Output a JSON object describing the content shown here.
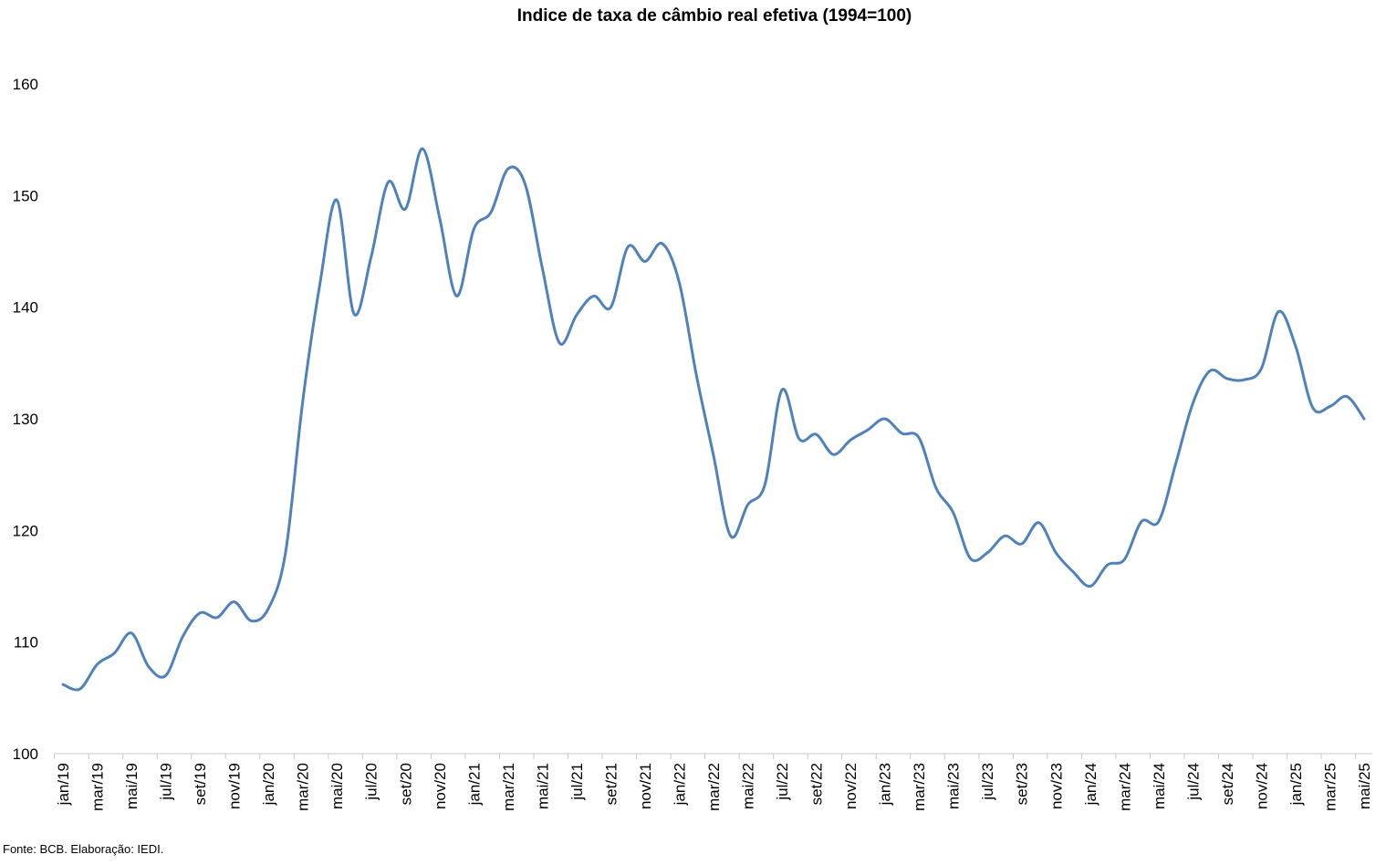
{
  "chart_data": {
    "type": "line",
    "title": "Indice de taxa de câmbio real efetiva (1994=100)",
    "source_note": "Fonte: BCB. Elaboração: IEDI.",
    "xlabel": "",
    "ylabel": "",
    "ylim": [
      100,
      160
    ],
    "yticks": [
      "100",
      "110",
      "120",
      "130",
      "140",
      "150",
      "160"
    ],
    "grid": false,
    "legend": "none",
    "line_color": "#4f81bd",
    "x_tick_labels": [
      "jan/19",
      "mar/19",
      "mai/19",
      "jul/19",
      "set/19",
      "nov/19",
      "jan/20",
      "mar/20",
      "mai/20",
      "jul/20",
      "set/20",
      "nov/20",
      "jan/21",
      "mar/21",
      "mai/21",
      "jul/21",
      "set/21",
      "nov/21",
      "jan/22",
      "mar/22",
      "mai/22",
      "jul/22",
      "set/22",
      "nov/22",
      "jan/23",
      "mar/23",
      "mai/23",
      "jul/23",
      "set/23",
      "nov/23",
      "jan/24",
      "mar/24",
      "mai/24",
      "jul/24",
      "set/24",
      "nov/24",
      "jan/25",
      "mar/25",
      "mai/25"
    ],
    "x": [
      "jan/19",
      "fev/19",
      "mar/19",
      "abr/19",
      "mai/19",
      "jun/19",
      "jul/19",
      "ago/19",
      "set/19",
      "out/19",
      "nov/19",
      "dez/19",
      "jan/20",
      "fev/20",
      "mar/20",
      "abr/20",
      "mai/20",
      "jun/20",
      "jul/20",
      "ago/20",
      "set/20",
      "out/20",
      "nov/20",
      "dez/20",
      "jan/21",
      "fev/21",
      "mar/21",
      "abr/21",
      "mai/21",
      "jun/21",
      "jul/21",
      "ago/21",
      "set/21",
      "out/21",
      "nov/21",
      "dez/21",
      "jan/22",
      "fev/22",
      "mar/22",
      "abr/22",
      "mai/22",
      "jun/22",
      "jul/22",
      "ago/22",
      "set/22",
      "out/22",
      "nov/22",
      "dez/22",
      "jan/23",
      "fev/23",
      "mar/23",
      "abr/23",
      "mai/23",
      "jun/23",
      "jul/23",
      "ago/23",
      "set/23",
      "out/23",
      "nov/23",
      "dez/23",
      "jan/24",
      "fev/24",
      "mar/24",
      "abr/24",
      "mai/24",
      "jun/24",
      "jul/24",
      "ago/24",
      "set/24",
      "out/24",
      "nov/24",
      "dez/24",
      "jan/25",
      "fev/25",
      "mar/25",
      "abr/25",
      "mai/25"
    ],
    "series": [
      {
        "values": [
          106.2,
          105.8,
          108.0,
          109.0,
          110.8,
          107.8,
          107.0,
          110.5,
          112.6,
          112.2,
          113.6,
          111.9,
          113.0,
          118.0,
          131.5,
          142.0,
          149.6,
          139.4,
          144.5,
          151.2,
          148.8,
          154.2,
          148.0,
          141.0,
          147.0,
          148.5,
          152.4,
          151.0,
          143.5,
          136.8,
          139.3,
          141.0,
          140.0,
          145.4,
          144.1,
          145.7,
          142.2,
          133.9,
          126.7,
          119.5,
          122.3,
          124.1,
          132.6,
          128.2,
          128.6,
          126.8,
          128.1,
          129.0,
          130.0,
          128.7,
          128.3,
          123.8,
          121.6,
          117.5,
          118.0,
          119.5,
          118.8,
          120.7,
          118.0,
          116.3,
          115.0,
          116.9,
          117.4,
          120.8,
          120.8,
          126.0,
          131.4,
          134.3,
          133.6,
          133.5,
          134.5,
          139.6,
          136.5,
          131.0,
          131.1,
          132.0,
          130.0
        ]
      }
    ]
  }
}
